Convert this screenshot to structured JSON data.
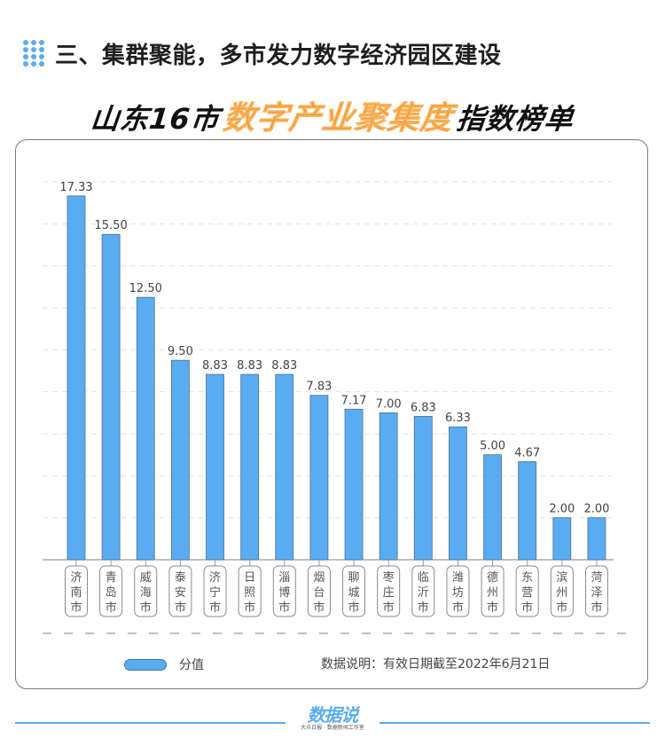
{
  "section": {
    "title": "三、集群聚能，多市发力数字经济园区建设",
    "icon": "dot-grid-icon"
  },
  "main_title": {
    "prefix": "山东16市",
    "highlight": "数字产业聚集度",
    "suffix": "指数榜单",
    "highlight_color": "#F7931E"
  },
  "legend": {
    "series_label": "分值",
    "swatch_color": "#5AACF2"
  },
  "note": "数据说明：有效日期截至2022年6月21日",
  "footer": {
    "brand": "数据说",
    "sub": "大众日报 · 数据新闻工作室"
  },
  "chart_data": {
    "type": "bar",
    "title": "山东16市数字产业聚集度指数榜单",
    "xlabel": "",
    "ylabel": "",
    "ylim": [
      0,
      18
    ],
    "grid": true,
    "legend_position": "bottom-left",
    "bar_color": "#5AACF2",
    "categories": [
      "济南市",
      "青岛市",
      "威海市",
      "泰安市",
      "济宁市",
      "日照市",
      "淄博市",
      "烟台市",
      "聊城市",
      "枣庄市",
      "临沂市",
      "潍坊市",
      "德州市",
      "东营市",
      "滨州市",
      "菏泽市"
    ],
    "series": [
      {
        "name": "分值",
        "values": [
          17.33,
          15.5,
          12.5,
          9.5,
          8.83,
          8.83,
          8.83,
          7.83,
          7.17,
          7.0,
          6.83,
          6.33,
          5.0,
          4.67,
          2.0,
          2.0
        ]
      }
    ],
    "value_labels": [
      "17.33",
      "15.50",
      "12.50",
      "9.50",
      "8.83",
      "8.83",
      "8.83",
      "7.83",
      "7.17",
      "7.00",
      "6.83",
      "6.33",
      "5.00",
      "4.67",
      "2.00",
      "2.00"
    ],
    "annotations": [
      "数据说明：有效日期截至2022年6月21日"
    ]
  }
}
